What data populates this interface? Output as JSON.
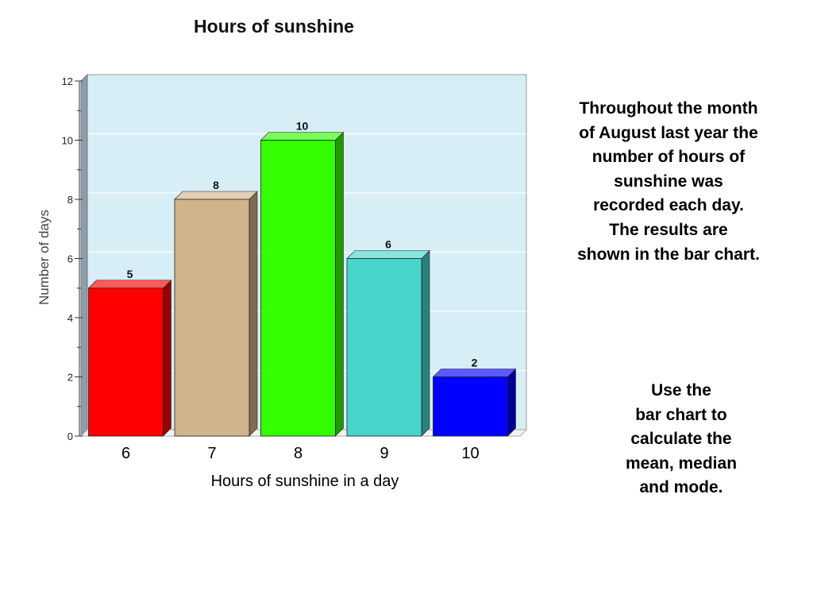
{
  "chart_data": {
    "type": "bar",
    "title": "Hours of sunshine",
    "xlabel": "Hours of sunshine in a day",
    "ylabel": "Number of days",
    "categories": [
      "6",
      "7",
      "8",
      "9",
      "10"
    ],
    "values": [
      5,
      8,
      10,
      6,
      2
    ],
    "data_labels": [
      "5",
      "8",
      "10",
      "6",
      "2"
    ],
    "ylim": [
      0,
      12
    ],
    "yticks": [
      "0",
      "2",
      "4",
      "6",
      "8",
      "10",
      "12"
    ],
    "grid": true,
    "legend": "none",
    "colors": {
      "bars": [
        "#ff0000",
        "#d2b48c",
        "#33ff00",
        "#48d6cc",
        "#0000ff"
      ],
      "plot_background": "#d8eef6"
    }
  },
  "text": {
    "description_lines": [
      "Throughout the month",
      "of August last year the",
      "number of hours of",
      "sunshine was",
      "recorded each day.",
      "The results are",
      "shown in the bar chart."
    ],
    "task_lines": [
      "Use the",
      "bar chart to",
      "calculate the",
      "mean, median",
      "and mode."
    ]
  }
}
